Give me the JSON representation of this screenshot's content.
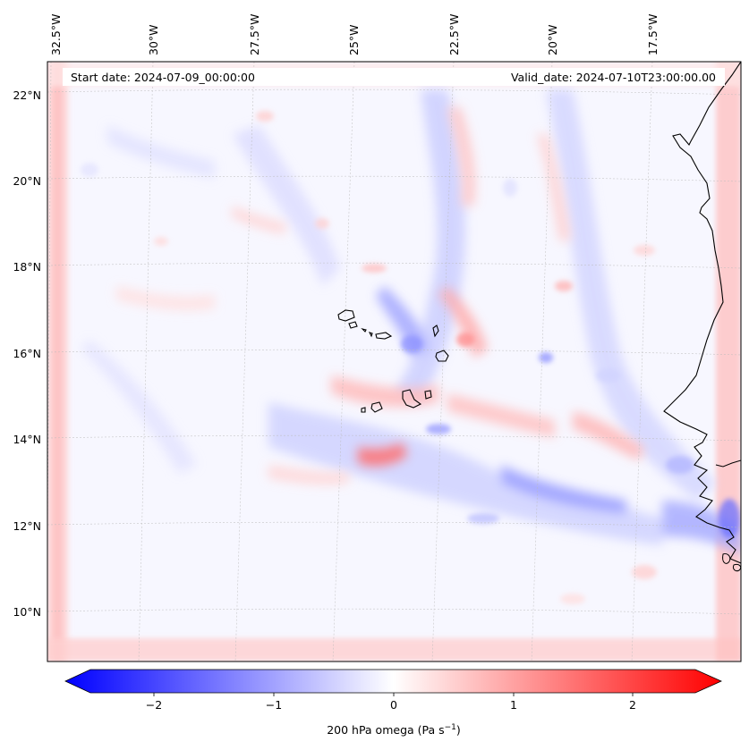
{
  "header": {
    "start_label": "Start date: 2024-07-09_00:00:00",
    "valid_label": "Valid_date: 2024-07-10T23:00:00.00"
  },
  "map": {
    "lon_labels": [
      "32.5°W",
      "30°W",
      "27.5°W",
      "25°W",
      "22.5°W",
      "20°W",
      "17.5°W"
    ],
    "lat_labels": [
      "22°N",
      "20°N",
      "18°N",
      "16°N",
      "14°N",
      "12°N",
      "10°N"
    ],
    "coastline_color": "#000000",
    "gridline_color": "#bbbbbb"
  },
  "colorbar": {
    "ticks": [
      "−2",
      "−1",
      "0",
      "1",
      "2"
    ],
    "label_main": "200 hPa omega (Pa s",
    "label_exp": "−1",
    "label_close": ")",
    "colormap": "bwr",
    "min_color": "#0000ff",
    "mid_color": "#ffffff",
    "max_color": "#ff0000"
  }
}
